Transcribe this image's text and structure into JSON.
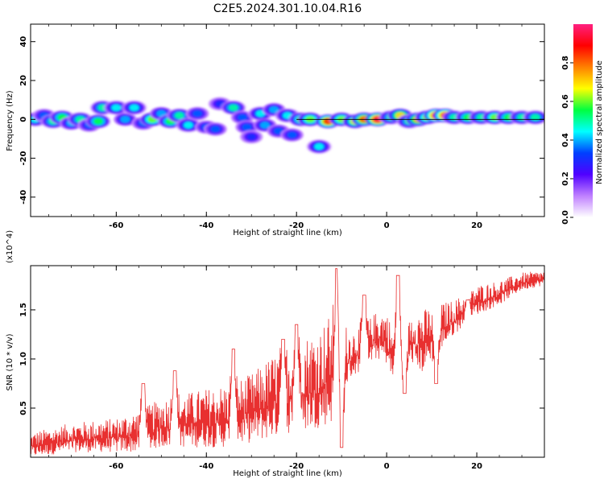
{
  "title": "C2E5.2024.301.10.04.R16",
  "chart_data": [
    {
      "type": "heatmap",
      "xlabel": "Height of straight line (km)",
      "ylabel": "Frequency (Hz)",
      "xlim": [
        -79,
        35
      ],
      "ylim": [
        -50,
        49
      ],
      "x_ticks": [
        -60,
        -40,
        -20,
        0,
        20
      ],
      "x_tick_labels": [
        "-60",
        "-40",
        "-20",
        "0",
        "20"
      ],
      "y_ticks": [
        -40,
        -20,
        0,
        20,
        40
      ],
      "y_tick_labels": [
        "-40",
        "-20",
        "0",
        "20",
        "40"
      ],
      "colorbar": {
        "label": "Normalized spectral amplitude",
        "range": [
          0,
          1
        ],
        "ticks": [
          0.0,
          0.2,
          0.4,
          0.6,
          0.8
        ],
        "tick_labels": [
          "0.0",
          "0.2",
          "0.4",
          "0.6",
          "0.8"
        ],
        "colormap": [
          "#ffffff",
          "#c080ff",
          "#5000ff",
          "#0040ff",
          "#00ffff",
          "#00ff40",
          "#ffff00",
          "#ff8000",
          "#ff0000",
          "#ff2080"
        ]
      },
      "blobs": [
        {
          "x": -78,
          "y": 0,
          "amp": 0.45
        },
        {
          "x": -76,
          "y": 2,
          "amp": 0.35
        },
        {
          "x": -74,
          "y": -1,
          "amp": 0.5
        },
        {
          "x": -72,
          "y": 1,
          "amp": 0.55
        },
        {
          "x": -70,
          "y": -2,
          "amp": 0.4
        },
        {
          "x": -68,
          "y": 0,
          "amp": 0.5
        },
        {
          "x": -66,
          "y": -3,
          "amp": 0.35
        },
        {
          "x": -64,
          "y": -1,
          "amp": 0.55
        },
        {
          "x": -63,
          "y": 6,
          "amp": 0.5
        },
        {
          "x": -60,
          "y": 6,
          "amp": 0.45
        },
        {
          "x": -58,
          "y": 0,
          "amp": 0.4
        },
        {
          "x": -56,
          "y": 6,
          "amp": 0.45
        },
        {
          "x": -54,
          "y": -2,
          "amp": 0.35
        },
        {
          "x": -52,
          "y": 0,
          "amp": 0.6
        },
        {
          "x": -50,
          "y": 3,
          "amp": 0.4
        },
        {
          "x": -48,
          "y": -1,
          "amp": 0.55
        },
        {
          "x": -46,
          "y": 2,
          "amp": 0.5
        },
        {
          "x": -44,
          "y": -3,
          "amp": 0.45
        },
        {
          "x": -42,
          "y": 3,
          "amp": 0.35
        },
        {
          "x": -40,
          "y": -4,
          "amp": 0.35
        },
        {
          "x": -38,
          "y": -5,
          "amp": 0.35
        },
        {
          "x": -37,
          "y": 8,
          "amp": 0.3
        },
        {
          "x": -34,
          "y": 6,
          "amp": 0.5
        },
        {
          "x": -32,
          "y": 1,
          "amp": 0.35
        },
        {
          "x": -31,
          "y": -4,
          "amp": 0.35
        },
        {
          "x": -30,
          "y": -9,
          "amp": 0.3
        },
        {
          "x": -28,
          "y": 3,
          "amp": 0.45
        },
        {
          "x": -27,
          "y": -3,
          "amp": 0.4
        },
        {
          "x": -25,
          "y": 5,
          "amp": 0.4
        },
        {
          "x": -24,
          "y": -6,
          "amp": 0.35
        },
        {
          "x": -22,
          "y": 2,
          "amp": 0.45
        },
        {
          "x": -21,
          "y": -8,
          "amp": 0.35
        },
        {
          "x": -19,
          "y": 0,
          "amp": 0.55
        },
        {
          "x": -17,
          "y": 0,
          "amp": 0.6
        },
        {
          "x": -15,
          "y": -14,
          "amp": 0.45
        },
        {
          "x": -13,
          "y": -1,
          "amp": 0.85
        },
        {
          "x": -10,
          "y": 0,
          "amp": 0.6
        },
        {
          "x": -7,
          "y": -1,
          "amp": 0.65
        },
        {
          "x": -5,
          "y": 0,
          "amp": 0.8
        },
        {
          "x": -2,
          "y": 0,
          "amp": 0.95
        },
        {
          "x": 1,
          "y": 1,
          "amp": 0.5
        },
        {
          "x": 3,
          "y": 2,
          "amp": 0.7
        },
        {
          "x": 5,
          "y": -1,
          "amp": 0.5
        },
        {
          "x": 7,
          "y": 0,
          "amp": 0.75
        },
        {
          "x": 9,
          "y": 1,
          "amp": 0.6
        },
        {
          "x": 11,
          "y": 2,
          "amp": 0.9
        },
        {
          "x": 13,
          "y": 2,
          "amp": 0.88
        },
        {
          "x": 15,
          "y": 1,
          "amp": 0.5
        },
        {
          "x": 18,
          "y": 1,
          "amp": 0.55
        },
        {
          "x": 21,
          "y": 1,
          "amp": 0.5
        },
        {
          "x": 24,
          "y": 1,
          "amp": 0.6
        },
        {
          "x": 27,
          "y": 1,
          "amp": 0.55
        },
        {
          "x": 30,
          "y": 1,
          "amp": 0.5
        },
        {
          "x": 33,
          "y": 1,
          "amp": 0.5
        }
      ]
    },
    {
      "type": "line",
      "xlabel": "Height of straight line (km)",
      "ylabel": "SNR (10 * v/v)",
      "multiplier_label": "(x10^4)",
      "xlim": [
        -79,
        35
      ],
      "ylim": [
        0,
        1.95
      ],
      "x_ticks": [
        -60,
        -40,
        -20,
        0,
        20
      ],
      "x_tick_labels": [
        "-60",
        "-40",
        "-20",
        "0",
        "20"
      ],
      "y_ticks": [
        0.5,
        1.0,
        1.5
      ],
      "y_tick_labels": [
        "0.5",
        "1.0",
        "1.5"
      ],
      "color": "#e83030",
      "envelope": {
        "x": [
          -79,
          -70,
          -60,
          -54,
          -50,
          -40,
          -35,
          -30,
          -25,
          -20,
          -15,
          -12,
          -11,
          -10,
          -8,
          -5,
          -2,
          0,
          2,
          4,
          6,
          8,
          10,
          15,
          20,
          25,
          30,
          35
        ],
        "low": [
          0.0,
          0.05,
          0.05,
          0.05,
          0.1,
          0.1,
          0.1,
          0.15,
          0.2,
          0.25,
          0.3,
          0.35,
          0.15,
          0.6,
          0.8,
          0.9,
          1.0,
          0.95,
          0.65,
          0.9,
          0.95,
          0.85,
          1.0,
          1.25,
          1.45,
          1.55,
          1.7,
          1.75
        ],
        "high": [
          0.25,
          0.35,
          0.4,
          0.5,
          0.6,
          0.7,
          0.75,
          0.85,
          1.05,
          1.2,
          1.3,
          1.5,
          1.8,
          1.4,
          1.3,
          1.35,
          1.5,
          1.5,
          1.2,
          1.45,
          1.5,
          1.5,
          1.55,
          1.6,
          1.75,
          1.8,
          1.88,
          1.9
        ]
      },
      "peaks": [
        {
          "x": -54,
          "y": 0.75
        },
        {
          "x": -47,
          "y": 0.88
        },
        {
          "x": -34,
          "y": 1.1
        },
        {
          "x": -23,
          "y": 1.2
        },
        {
          "x": -20,
          "y": 1.35
        },
        {
          "x": -11,
          "y": 1.92
        },
        {
          "x": -10,
          "y": 0.1
        },
        {
          "x": -5,
          "y": 1.65
        },
        {
          "x": 2.5,
          "y": 1.85
        },
        {
          "x": 4,
          "y": 0.65
        },
        {
          "x": 11,
          "y": 0.75
        },
        {
          "x": 18,
          "y": 1.6
        }
      ]
    }
  ]
}
